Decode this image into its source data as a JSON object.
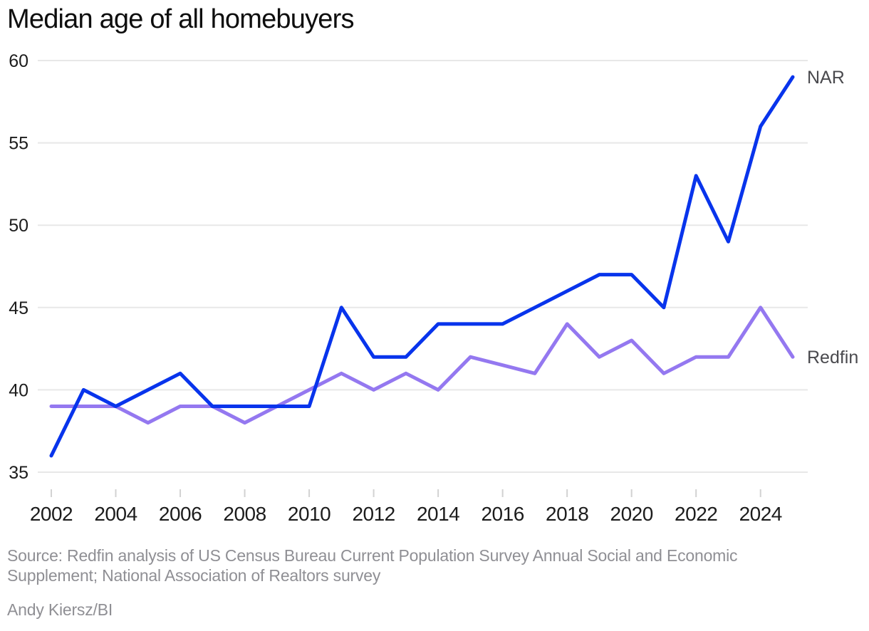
{
  "title": "Median age of all homebuyers",
  "source": {
    "text": "Source: Redfin analysis of US Census Bureau Current Population Survey Annual Social and Economic Supplement; National Association of Realtors survey",
    "credit": "Andy Kiersz/BI"
  },
  "chart_data": {
    "type": "line",
    "title": "Median age of all homebuyers",
    "x": [
      2002,
      2003,
      2004,
      2005,
      2006,
      2007,
      2008,
      2009,
      2010,
      2011,
      2012,
      2013,
      2014,
      2015,
      2016,
      2017,
      2018,
      2019,
      2020,
      2021,
      2022,
      2023,
      2024,
      2025
    ],
    "series": [
      {
        "name": "NAR",
        "color": "#0834ec",
        "values": [
          36,
          40,
          39,
          40,
          41,
          39,
          39,
          39,
          39,
          45,
          42,
          42,
          44,
          44,
          44,
          45,
          46,
          47,
          47,
          45,
          53,
          49,
          56,
          59
        ]
      },
      {
        "name": "Redfin",
        "color": "#9478f0",
        "values": [
          39,
          39,
          39,
          38,
          39,
          39,
          38,
          39,
          40,
          41,
          40,
          41,
          40,
          42,
          41.5,
          41,
          44,
          42,
          43,
          41,
          42,
          42,
          45,
          42
        ]
      }
    ],
    "ylim": [
      35,
      60
    ],
    "yticks": [
      35,
      40,
      45,
      50,
      55,
      60
    ],
    "xticks": [
      2002,
      2004,
      2006,
      2008,
      2010,
      2012,
      2014,
      2016,
      2018,
      2020,
      2022,
      2024
    ],
    "grid": "horizontal",
    "legend": "end-of-line-labels"
  }
}
